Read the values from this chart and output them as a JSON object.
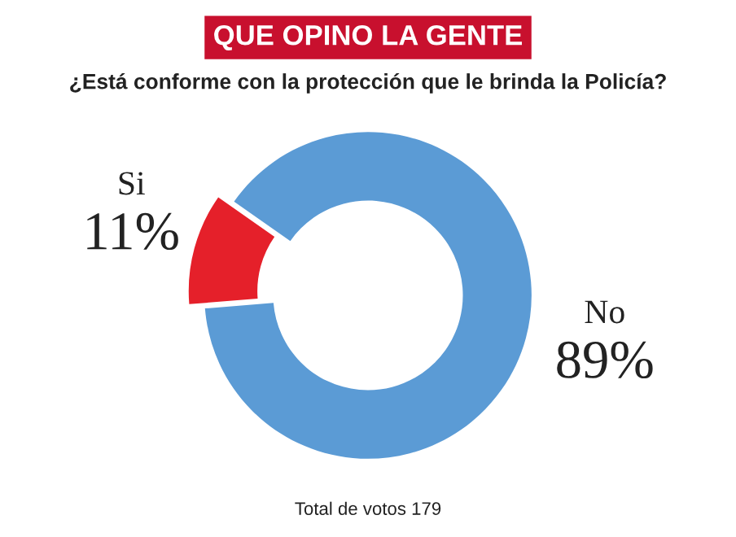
{
  "chart_data": {
    "type": "donut",
    "title": "QUE OPINO LA GENTE",
    "subtitle": "¿Está conforme con la protección que le brinda la Policía?",
    "categories": [
      "Si",
      "No"
    ],
    "values": [
      11,
      89
    ],
    "value_labels": [
      "11%",
      "89%"
    ],
    "colors": [
      "#e5202a",
      "#5b9bd5"
    ],
    "annotations": [
      "Total de votos 179"
    ]
  }
}
